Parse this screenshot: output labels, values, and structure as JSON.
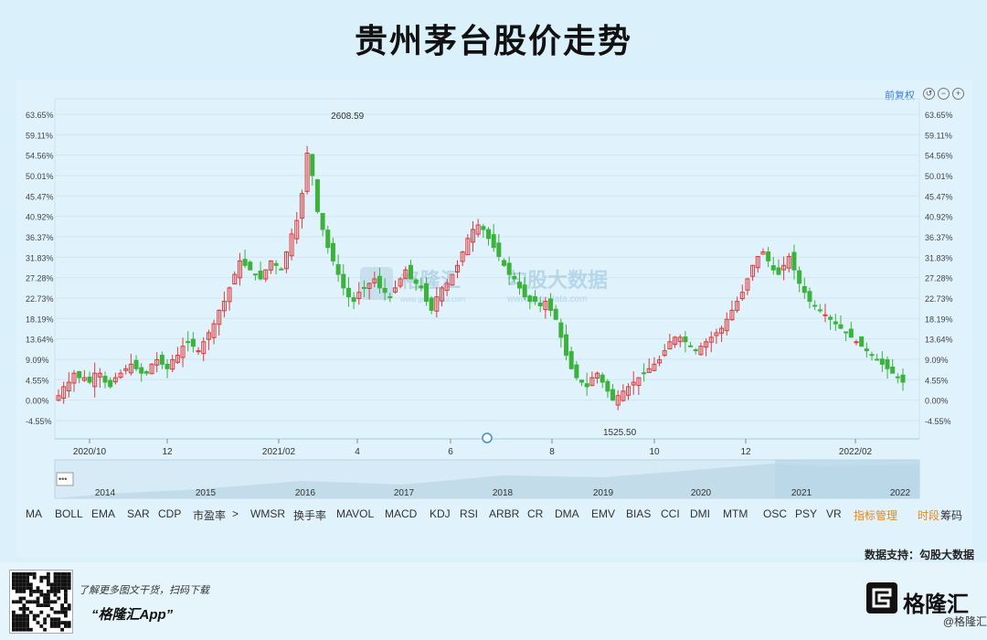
{
  "title": "贵州茅台股价走势",
  "controls": {
    "adjust_label": "前复权"
  },
  "indicators": [
    "MA",
    "BOLL",
    "EMA",
    "SAR",
    "CDP",
    "市盈率",
    ">",
    "WMSR",
    "换手率",
    "MAVOL",
    "MACD",
    "KDJ",
    "RSI",
    "ARBR",
    "CR",
    "DMA",
    "EMV",
    "BIAS",
    "CCI",
    "DMI",
    "MTM",
    "OSC",
    "PSY",
    "VR",
    "指标管理",
    "时段",
    "筹码"
  ],
  "indicator_accent": "#e08a1e",
  "support_text": "数据支持：勾股大数据",
  "footer": {
    "promo_line1": "了解更多图文干货，扫码下载",
    "promo_line2": "“格隆汇App”",
    "brand_name": "格隆汇",
    "brand_sub": "@格隆汇"
  },
  "watermark": {
    "brand1": "格隆汇",
    "brand2": "勾股大数据",
    "url1": "www.gelonghui.com",
    "url2": "www.gogudata.com"
  },
  "chart_data": {
    "type": "candlestick",
    "y_unit": "percent",
    "ylim": [
      -4.55,
      63.65
    ],
    "yticks": [
      "63.65%",
      "59.11%",
      "54.56%",
      "50.01%",
      "45.47%",
      "40.92%",
      "36.37%",
      "31.83%",
      "27.28%",
      "22.73%",
      "18.19%",
      "13.64%",
      "9.09%",
      "4.55%",
      "0.00%",
      "-4.55%"
    ],
    "xticks": [
      "2020/10",
      "12",
      "2021/02",
      "4",
      "6",
      "8",
      "10",
      "12",
      "2022/02"
    ],
    "annotations": {
      "high_label": "2608.59",
      "low_label": "1525.50"
    },
    "navigator_years": [
      "2014",
      "2015",
      "2016",
      "2017",
      "2018",
      "2019",
      "2020",
      "2021",
      "2022"
    ],
    "colors": {
      "up": "#e0393a",
      "down": "#3bb33b"
    },
    "series": [
      {
        "name": "close_pct",
        "values": [
          1,
          3,
          4,
          6,
          5,
          5,
          4,
          6,
          6,
          4,
          3,
          5,
          6,
          7,
          8,
          7,
          6,
          6,
          8,
          9,
          8,
          7,
          9,
          10,
          12,
          13,
          12,
          11,
          13,
          15,
          17,
          20,
          22,
          25,
          28,
          31,
          30,
          29,
          28,
          27,
          29,
          31,
          30,
          29,
          33,
          37,
          40,
          46,
          55,
          50,
          42,
          38,
          34,
          31,
          28,
          25,
          23,
          22,
          24,
          25,
          26,
          27,
          25,
          24,
          23,
          25,
          27,
          29,
          27,
          26,
          25,
          22,
          20,
          23,
          25,
          26,
          28,
          30,
          33,
          36,
          38,
          39,
          38,
          36,
          34,
          32,
          30,
          28,
          27,
          25,
          23,
          22,
          22,
          21,
          22,
          20,
          18,
          14,
          10,
          7,
          5,
          4,
          3,
          5,
          6,
          4,
          2,
          0,
          1,
          2,
          3,
          4,
          5,
          6,
          7,
          8,
          9,
          11,
          13,
          14,
          14,
          13,
          12,
          11,
          12,
          13,
          14,
          15,
          16,
          18,
          20,
          22,
          24,
          27,
          30,
          32,
          33,
          31,
          29,
          28,
          30,
          32,
          29,
          26,
          24,
          22,
          21,
          20,
          19,
          18,
          17,
          16,
          15,
          14,
          13,
          12,
          11,
          10,
          9,
          8,
          7,
          6,
          5,
          4
        ]
      }
    ]
  }
}
